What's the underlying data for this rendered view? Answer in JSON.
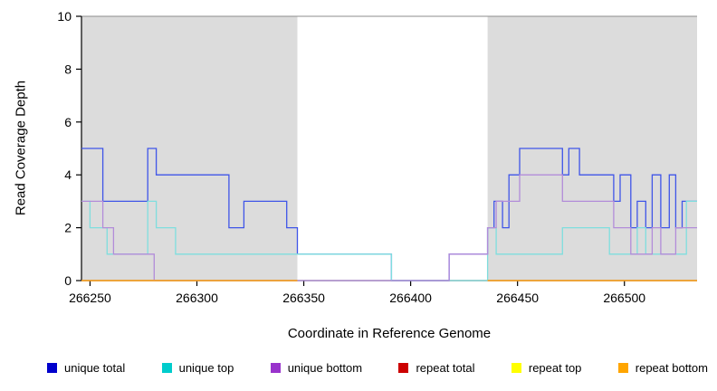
{
  "chart_data": {
    "type": "line",
    "title": "",
    "xlabel": "Coordinate in Reference Genome",
    "ylabel": "Read Coverage Depth",
    "xlim": [
      266246,
      266534
    ],
    "ylim": [
      0,
      10
    ],
    "x_ticks": [
      266250,
      266300,
      266350,
      266400,
      266450,
      266500
    ],
    "y_ticks": [
      0,
      2,
      4,
      6,
      8,
      10
    ],
    "grid": "off",
    "shade_color": "#dcdcdc",
    "shaded_regions": [
      {
        "x0": 266246,
        "x1": 266347
      },
      {
        "x0": 266436,
        "x1": 266534
      }
    ],
    "top_line": {
      "y": 10,
      "color": "#8c8c8c"
    },
    "axis_color": "#000000",
    "series": [
      {
        "name": "unique total",
        "color": "#3f55e8",
        "segments": [
          [
            [
              266246,
              5
            ],
            [
              266256,
              3
            ],
            [
              266277,
              5
            ],
            [
              266281,
              4
            ],
            [
              266315,
              2
            ],
            [
              266322,
              3
            ],
            [
              266342,
              2
            ],
            [
              266347,
              1
            ],
            [
              266391,
              0
            ],
            [
              266418,
              1
            ],
            [
              266436,
              2
            ],
            [
              266439,
              3
            ],
            [
              266443,
              2
            ],
            [
              266446,
              4
            ],
            [
              266451,
              5
            ],
            [
              266471,
              4
            ],
            [
              266474,
              5
            ],
            [
              266479,
              4
            ],
            [
              266495,
              3
            ],
            [
              266498,
              4
            ],
            [
              266503,
              2
            ],
            [
              266506,
              3
            ],
            [
              266510,
              2
            ],
            [
              266513,
              4
            ],
            [
              266517,
              2
            ],
            [
              266521,
              4
            ],
            [
              266524,
              2
            ],
            [
              266527,
              3
            ],
            [
              266534,
              3
            ]
          ]
        ]
      },
      {
        "name": "unique top",
        "color": "#7fdede",
        "segments": [
          [
            [
              266246,
              3
            ],
            [
              266250,
              2
            ],
            [
              266258,
              1
            ],
            [
              266277,
              3
            ],
            [
              266281,
              2
            ],
            [
              266290,
              1
            ],
            [
              266391,
              0
            ],
            [
              266436,
              2
            ],
            [
              266440,
              1
            ],
            [
              266471,
              2
            ],
            [
              266493,
              1
            ],
            [
              266506,
              2
            ],
            [
              266510,
              1
            ],
            [
              266529,
              3
            ],
            [
              266534,
              3
            ]
          ]
        ]
      },
      {
        "name": "unique bottom",
        "color": "#b28cd9",
        "segments": [
          [
            [
              266246,
              3
            ],
            [
              266256,
              2
            ],
            [
              266261,
              1
            ],
            [
              266280,
              0
            ],
            [
              266418,
              1
            ],
            [
              266436,
              2
            ],
            [
              266440,
              3
            ],
            [
              266451,
              4
            ],
            [
              266471,
              3
            ],
            [
              266495,
              2
            ],
            [
              266503,
              1
            ],
            [
              266513,
              2
            ],
            [
              266517,
              1
            ],
            [
              266524,
              2
            ],
            [
              266534,
              2
            ]
          ]
        ]
      },
      {
        "name": "repeat total",
        "color": "#dd2222",
        "segments": [
          [
            [
              266246,
              0
            ],
            [
              266347,
              0
            ]
          ],
          [
            [
              266436,
              0
            ],
            [
              266534,
              0
            ]
          ]
        ]
      },
      {
        "name": "repeat top",
        "color": "#ffee33",
        "segments": [
          [
            [
              266246,
              0
            ],
            [
              266347,
              0
            ]
          ],
          [
            [
              266436,
              0
            ],
            [
              266534,
              0
            ]
          ]
        ]
      },
      {
        "name": "repeat bottom",
        "color": "#ffa41b",
        "segments": [
          [
            [
              266246,
              0
            ],
            [
              266347,
              0
            ]
          ],
          [
            [
              266436,
              0
            ],
            [
              266534,
              0
            ]
          ]
        ]
      }
    ],
    "legend": [
      {
        "label": "unique total",
        "color": "#0000cc"
      },
      {
        "label": "unique top",
        "color": "#00cccc"
      },
      {
        "label": "unique bottom",
        "color": "#9933cc"
      },
      {
        "label": "repeat total",
        "color": "#cc0000"
      },
      {
        "label": "repeat top",
        "color": "#ffff00"
      },
      {
        "label": "repeat bottom",
        "color": "#ffa500"
      }
    ],
    "legend_position": "bottom"
  }
}
